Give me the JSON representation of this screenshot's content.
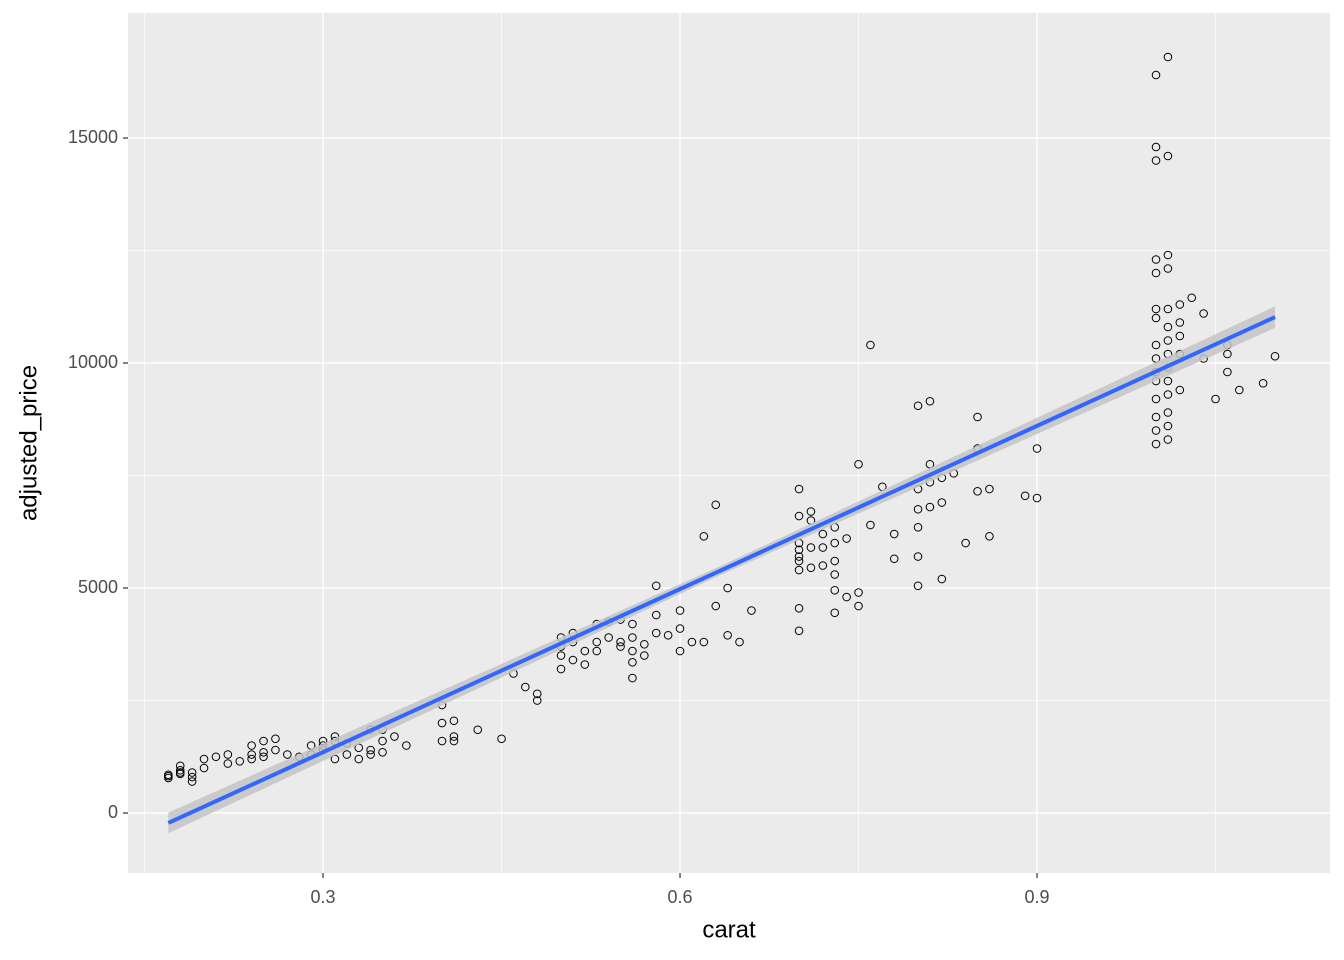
{
  "chart_data": {
    "type": "scatter",
    "x_label": "carat",
    "y_label": "adjusted_price",
    "xlim": [
      0.1361,
      1.1462
    ],
    "ylim": [
      -1333,
      17778
    ],
    "xticks": [
      0.3,
      0.6,
      0.9
    ],
    "yticks": [
      0,
      5000,
      10000,
      15000
    ],
    "xminor": [
      0.15,
      0.45,
      0.75,
      1.05
    ],
    "yminor": [
      2500,
      7500,
      12500
    ],
    "grid": true,
    "color": "#000000",
    "x": [
      0.17,
      0.17,
      0.17,
      0.18,
      0.18,
      0.18,
      0.18,
      0.19,
      0.19,
      0.19,
      0.2,
      0.2,
      0.21,
      0.22,
      0.22,
      0.23,
      0.24,
      0.24,
      0.24,
      0.25,
      0.25,
      0.25,
      0.26,
      0.26,
      0.27,
      0.28,
      0.29,
      0.29,
      0.3,
      0.3,
      0.3,
      0.31,
      0.31,
      0.31,
      0.32,
      0.32,
      0.33,
      0.33,
      0.34,
      0.34,
      0.34,
      0.35,
      0.35,
      0.35,
      0.36,
      0.37,
      0.4,
      0.4,
      0.4,
      0.41,
      0.41,
      0.41,
      0.43,
      0.45,
      0.46,
      0.47,
      0.48,
      0.48,
      0.5,
      0.5,
      0.5,
      0.5,
      0.51,
      0.51,
      0.51,
      0.52,
      0.52,
      0.53,
      0.53,
      0.53,
      0.54,
      0.54,
      0.55,
      0.55,
      0.55,
      0.56,
      0.56,
      0.56,
      0.56,
      0.56,
      0.57,
      0.57,
      0.58,
      0.58,
      0.58,
      0.59,
      0.6,
      0.6,
      0.6,
      0.61,
      0.62,
      0.62,
      0.63,
      0.63,
      0.64,
      0.64,
      0.65,
      0.66,
      0.7,
      0.7,
      0.7,
      0.7,
      0.7,
      0.7,
      0.7,
      0.7,
      0.7,
      0.71,
      0.71,
      0.71,
      0.71,
      0.72,
      0.72,
      0.72,
      0.73,
      0.73,
      0.73,
      0.73,
      0.73,
      0.73,
      0.74,
      0.74,
      0.75,
      0.75,
      0.75,
      0.76,
      0.76,
      0.77,
      0.78,
      0.78,
      0.8,
      0.8,
      0.8,
      0.8,
      0.8,
      0.8,
      0.81,
      0.81,
      0.81,
      0.81,
      0.82,
      0.82,
      0.82,
      0.83,
      0.84,
      0.85,
      0.85,
      0.85,
      0.86,
      0.86,
      0.89,
      0.9,
      0.9,
      1.0,
      1.0,
      1.0,
      1.0,
      1.0,
      1.0,
      1.0,
      1.0,
      1.0,
      1.0,
      1.0,
      1.0,
      1.0,
      1.0,
      1.0,
      1.01,
      1.01,
      1.01,
      1.01,
      1.01,
      1.01,
      1.01,
      1.01,
      1.01,
      1.01,
      1.01,
      1.01,
      1.01,
      1.01,
      1.02,
      1.02,
      1.02,
      1.02,
      1.02,
      1.03,
      1.04,
      1.04,
      1.05,
      1.06,
      1.06,
      1.06,
      1.07,
      1.09,
      1.1
    ],
    "values": [
      780,
      820,
      850,
      870,
      900,
      950,
      1050,
      700,
      800,
      900,
      1000,
      1200,
      1250,
      1100,
      1300,
      1150,
      1200,
      1300,
      1500,
      1350,
      1250,
      1600,
      1650,
      1400,
      1300,
      1250,
      1500,
      1300,
      1400,
      1600,
      1500,
      1700,
      1600,
      1200,
      1550,
      1300,
      1200,
      1450,
      1850,
      1400,
      1300,
      1850,
      1600,
      1350,
      1700,
      1500,
      2400,
      2000,
      1600,
      2050,
      1700,
      1600,
      1850,
      1650,
      3100,
      2800,
      2650,
      2500,
      3900,
      3700,
      3500,
      3200,
      4000,
      3800,
      3400,
      3600,
      3300,
      4200,
      3800,
      3600,
      4250,
      3900,
      4300,
      3800,
      3700,
      4200,
      3900,
      3600,
      3000,
      3350,
      3500,
      3750,
      5050,
      4400,
      4000,
      3950,
      4500,
      4100,
      3600,
      3800,
      6150,
      3800,
      6850,
      4600,
      5000,
      3950,
      3800,
      4500,
      7200,
      6600,
      6000,
      5850,
      5700,
      5600,
      5400,
      4550,
      4050,
      6700,
      6500,
      5900,
      5450,
      6200,
      5900,
      5500,
      6350,
      6000,
      5600,
      5300,
      4950,
      4450,
      6100,
      4800,
      7750,
      4900,
      4600,
      10400,
      6400,
      7250,
      6200,
      5650,
      9050,
      7200,
      6750,
      6350,
      5700,
      5050,
      9150,
      7750,
      7350,
      6800,
      7450,
      6900,
      5200,
      7550,
      6000,
      8800,
      8100,
      7150,
      7200,
      6150,
      7050,
      8100,
      7000,
      16400,
      14800,
      14500,
      12300,
      12000,
      11200,
      11000,
      10400,
      10100,
      9800,
      9600,
      9200,
      8800,
      8500,
      8200,
      16800,
      14600,
      12400,
      12100,
      11200,
      10800,
      10500,
      10200,
      9900,
      9600,
      9300,
      8900,
      8600,
      8300,
      11300,
      10900,
      10600,
      10200,
      9400,
      11450,
      11100,
      10100,
      9200,
      10400,
      10200,
      9800,
      9400,
      9550,
      10150
    ],
    "fit": {
      "x": [
        0.17,
        0.635,
        1.1
      ],
      "values": [
        -220,
        5400,
        11020
      ],
      "lower": [
        -450,
        5300,
        10780
      ],
      "upper": [
        10,
        5500,
        11260
      ],
      "color": "#3366ff",
      "band_color": "#c4c4c4"
    }
  }
}
